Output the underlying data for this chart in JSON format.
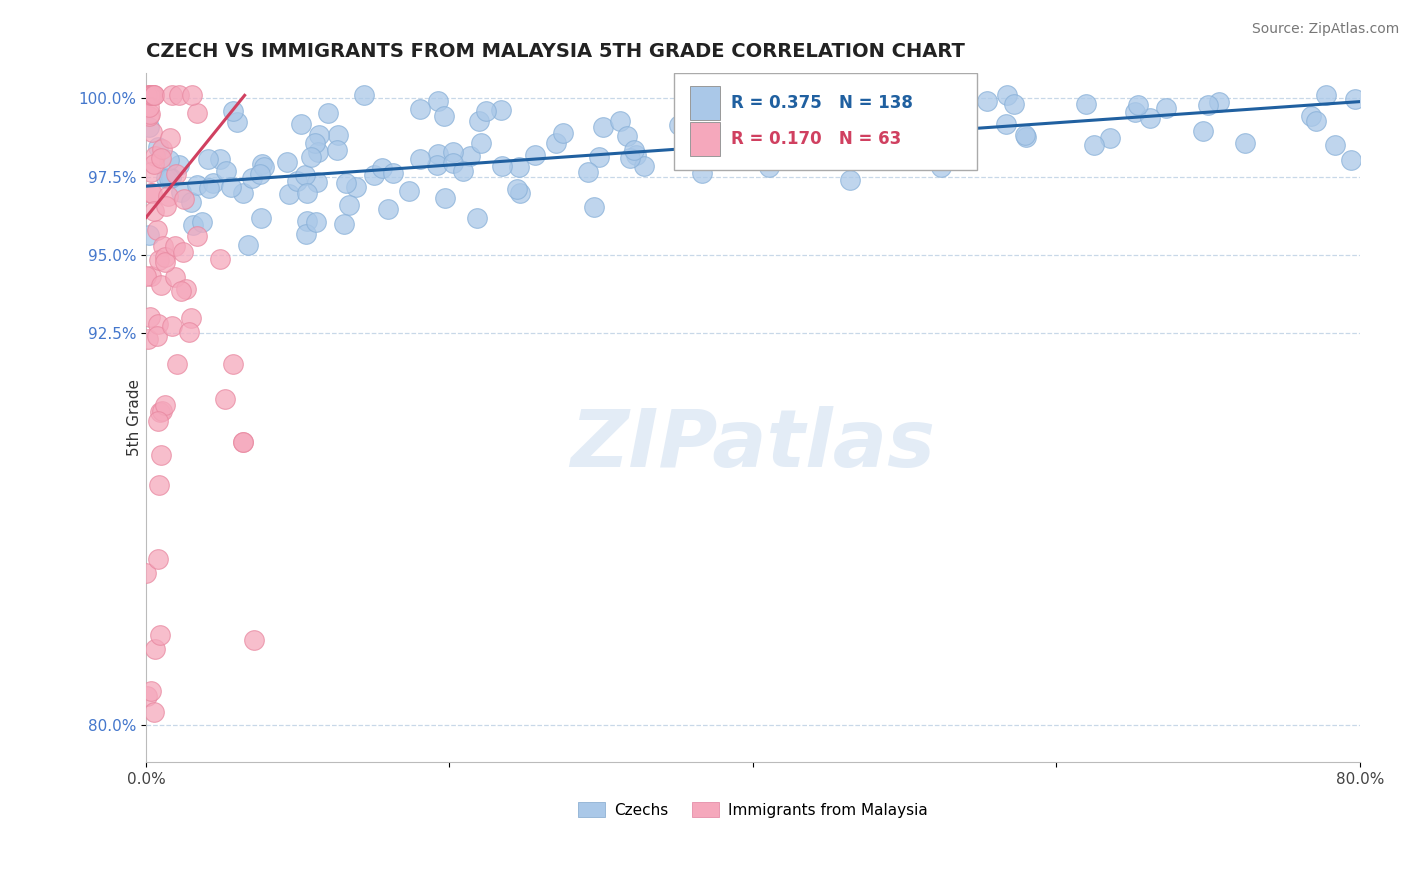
{
  "title": "CZECH VS IMMIGRANTS FROM MALAYSIA 5TH GRADE CORRELATION CHART",
  "source": "Source: ZipAtlas.com",
  "ylabel": "5th Grade",
  "xlim": [
    0.0,
    0.8
  ],
  "ylim": [
    0.788,
    1.008
  ],
  "xticks": [
    0.0,
    0.2,
    0.4,
    0.6,
    0.8
  ],
  "xticklabels": [
    "0.0%",
    "",
    "",
    "",
    "80.0%"
  ],
  "yticks": [
    0.8,
    0.925,
    0.95,
    0.975,
    1.0
  ],
  "yticklabels": [
    "80.0%",
    "92.5%",
    "95.0%",
    "97.5%",
    "100.0%"
  ],
  "blue_R": 0.375,
  "blue_N": 138,
  "pink_R": 0.17,
  "pink_N": 63,
  "blue_color": "#aac8e8",
  "pink_color": "#f5a8bc",
  "blue_edge_color": "#88b0d8",
  "pink_edge_color": "#e888a0",
  "blue_line_color": "#2060a0",
  "pink_line_color": "#d04060",
  "legend_blue_label": "Czechs",
  "legend_pink_label": "Immigrants from Malaysia",
  "watermark": "ZIPatlas",
  "title_fontsize": 14,
  "tick_fontsize": 11,
  "legend_fontsize": 11,
  "source_fontsize": 10
}
